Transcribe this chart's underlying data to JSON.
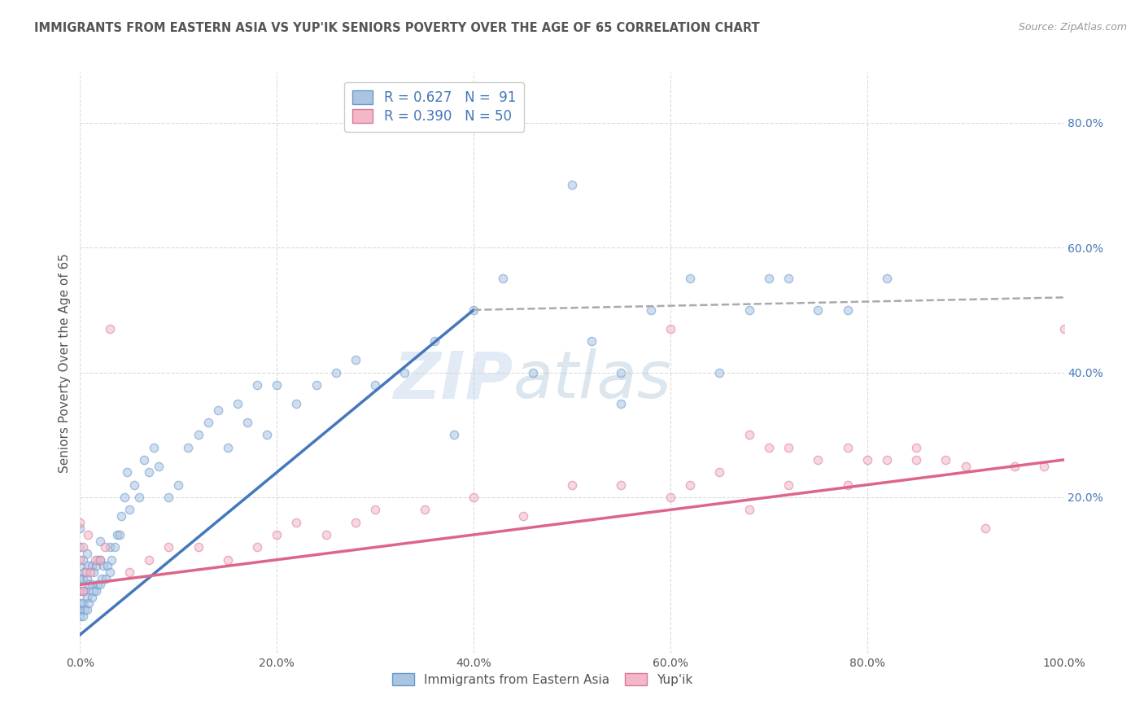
{
  "title": "IMMIGRANTS FROM EASTERN ASIA VS YUP'IK SENIORS POVERTY OVER THE AGE OF 65 CORRELATION CHART",
  "source": "Source: ZipAtlas.com",
  "ylabel": "Seniors Poverty Over the Age of 65",
  "xlim": [
    0.0,
    1.0
  ],
  "ylim": [
    -0.05,
    0.88
  ],
  "xticks": [
    0.0,
    0.2,
    0.4,
    0.6,
    0.8,
    1.0
  ],
  "xticklabels": [
    "0.0%",
    "20.0%",
    "40.0%",
    "60.0%",
    "80.0%",
    "100.0%"
  ],
  "yticks_left": [],
  "right_yticks": [
    0.2,
    0.4,
    0.6,
    0.8
  ],
  "right_yticklabels": [
    "20.0%",
    "40.0%",
    "60.0%",
    "80.0%"
  ],
  "blue_color": "#aac4e2",
  "blue_edge_color": "#6699cc",
  "pink_color": "#f2b8c8",
  "pink_edge_color": "#dd7799",
  "blue_line_color": "#4477bb",
  "pink_line_color": "#dd6688",
  "dashed_line_color": "#aaaaaa",
  "legend_line1": "R = 0.627   N =  91",
  "legend_line2": "R = 0.390   N = 50",
  "legend_label1": "Immigrants from Eastern Asia",
  "legend_label2": "Yup'ik",
  "title_color": "#555555",
  "axis_color": "#4477bb",
  "watermark_top": "ZIP",
  "watermark_bot": "atlas",
  "background_color": "#ffffff",
  "grid_color": "#cccccc",
  "scatter_size": 55,
  "scatter_alpha": 0.55,
  "scatter_linewidth": 1.0,
  "blue_line_x": [
    0.0,
    0.4
  ],
  "blue_line_y": [
    -0.02,
    0.5
  ],
  "dashed_line_x": [
    0.4,
    1.0
  ],
  "dashed_line_y": [
    0.5,
    0.52
  ],
  "pink_line_x": [
    0.0,
    1.0
  ],
  "pink_line_y": [
    0.06,
    0.26
  ],
  "blue_scatter_x": [
    0.0,
    0.0,
    0.0,
    0.0,
    0.0,
    0.0,
    0.0,
    0.0,
    0.003,
    0.003,
    0.003,
    0.003,
    0.003,
    0.005,
    0.005,
    0.005,
    0.007,
    0.007,
    0.007,
    0.007,
    0.009,
    0.009,
    0.009,
    0.012,
    0.012,
    0.012,
    0.014,
    0.014,
    0.016,
    0.016,
    0.018,
    0.018,
    0.02,
    0.02,
    0.02,
    0.022,
    0.024,
    0.026,
    0.028,
    0.03,
    0.03,
    0.032,
    0.035,
    0.038,
    0.04,
    0.042,
    0.045,
    0.048,
    0.05,
    0.055,
    0.06,
    0.065,
    0.07,
    0.075,
    0.08,
    0.09,
    0.1,
    0.11,
    0.12,
    0.13,
    0.14,
    0.15,
    0.16,
    0.17,
    0.18,
    0.19,
    0.2,
    0.22,
    0.24,
    0.26,
    0.28,
    0.3,
    0.33,
    0.36,
    0.38,
    0.4,
    0.43,
    0.46,
    0.5,
    0.52,
    0.55,
    0.55,
    0.58,
    0.62,
    0.65,
    0.68,
    0.7,
    0.72,
    0.75,
    0.78,
    0.82
  ],
  "blue_scatter_y": [
    0.01,
    0.02,
    0.03,
    0.05,
    0.07,
    0.09,
    0.12,
    0.15,
    0.01,
    0.03,
    0.05,
    0.07,
    0.1,
    0.02,
    0.05,
    0.08,
    0.02,
    0.04,
    0.07,
    0.11,
    0.03,
    0.06,
    0.09,
    0.04,
    0.06,
    0.09,
    0.05,
    0.08,
    0.05,
    0.09,
    0.06,
    0.1,
    0.06,
    0.1,
    0.13,
    0.07,
    0.09,
    0.07,
    0.09,
    0.08,
    0.12,
    0.1,
    0.12,
    0.14,
    0.14,
    0.17,
    0.2,
    0.24,
    0.18,
    0.22,
    0.2,
    0.26,
    0.24,
    0.28,
    0.25,
    0.2,
    0.22,
    0.28,
    0.3,
    0.32,
    0.34,
    0.28,
    0.35,
    0.32,
    0.38,
    0.3,
    0.38,
    0.35,
    0.38,
    0.4,
    0.42,
    0.38,
    0.4,
    0.45,
    0.3,
    0.5,
    0.55,
    0.4,
    0.7,
    0.45,
    0.4,
    0.35,
    0.5,
    0.55,
    0.4,
    0.5,
    0.55,
    0.55,
    0.5,
    0.5,
    0.55
  ],
  "pink_scatter_x": [
    0.0,
    0.0,
    0.0,
    0.003,
    0.003,
    0.006,
    0.008,
    0.01,
    0.015,
    0.02,
    0.025,
    0.03,
    0.05,
    0.07,
    0.09,
    0.12,
    0.15,
    0.18,
    0.2,
    0.22,
    0.25,
    0.28,
    0.3,
    0.35,
    0.4,
    0.45,
    0.5,
    0.55,
    0.6,
    0.65,
    0.68,
    0.7,
    0.72,
    0.75,
    0.78,
    0.8,
    0.82,
    0.85,
    0.88,
    0.9,
    0.92,
    0.95,
    0.98,
    1.0,
    0.6,
    0.62,
    0.68,
    0.72,
    0.78,
    0.85
  ],
  "pink_scatter_y": [
    0.05,
    0.1,
    0.16,
    0.05,
    0.12,
    0.08,
    0.14,
    0.08,
    0.1,
    0.1,
    0.12,
    0.47,
    0.08,
    0.1,
    0.12,
    0.12,
    0.1,
    0.12,
    0.14,
    0.16,
    0.14,
    0.16,
    0.18,
    0.18,
    0.2,
    0.17,
    0.22,
    0.22,
    0.2,
    0.24,
    0.18,
    0.28,
    0.22,
    0.26,
    0.22,
    0.26,
    0.26,
    0.26,
    0.26,
    0.25,
    0.15,
    0.25,
    0.25,
    0.47,
    0.47,
    0.22,
    0.3,
    0.28,
    0.28,
    0.28
  ]
}
